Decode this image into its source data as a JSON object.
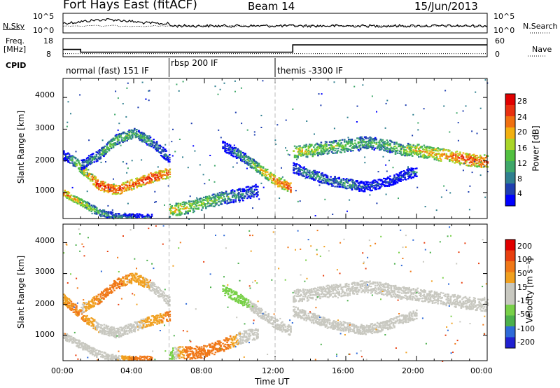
{
  "header": {
    "title": "Fort Hays East (fitACF)",
    "beam": "Beam 14",
    "date": "15/Jun/2013"
  },
  "params_panel": {
    "nsky_label": "N.Sky",
    "nsearch_label": "N.Search",
    "n_ticks": [
      "10^5",
      "10^0"
    ],
    "n_ticks_right": [
      "10^5",
      "10^0"
    ],
    "freq_label": "Freq.",
    "freq_unit": "[MHz]",
    "freq_ticks": [
      "18",
      "8"
    ],
    "nave_label": "Nave",
    "nave_ticks": [
      "60",
      "0"
    ],
    "cpid_label": "CPID",
    "cpid_segments": [
      {
        "text": "normal (fast) 151 IF",
        "start_h": 0.0
      },
      {
        "text": "rbsp 200 IF",
        "start_h": 6.0
      },
      {
        "text": "themis -3300 IF",
        "start_h": 12.0
      }
    ],
    "freq_steps": [
      {
        "t0": 0.0,
        "t1": 1.0,
        "value": 12.0
      },
      {
        "t0": 1.0,
        "t1": 13.0,
        "value": 10.5
      },
      {
        "t0": 13.0,
        "t1": 24.0,
        "value": 14.5
      }
    ],
    "nave_level": 10
  },
  "chart_data": [
    {
      "type": "heatmap",
      "name": "power",
      "ylabel": "Slant Range [km]",
      "xlim": [
        0,
        24
      ],
      "ylim": [
        180,
        4600
      ],
      "yticks": [
        "4000",
        "3000",
        "2000",
        "1000"
      ],
      "colorbar_label": "Power [dB]",
      "colorbar_ticks": [
        "28",
        "24",
        "20",
        "16",
        "12",
        "8",
        "4"
      ],
      "colorbar_colors": [
        "#0000ff",
        "#1f3fb0",
        "#2f7f8f",
        "#3fa86a",
        "#52c040",
        "#a9d528",
        "#f2b010",
        "#f07010",
        "#e83010",
        "#e00000"
      ],
      "bands": [
        {
          "pts": [
            [
              0,
              2200,
              4
            ],
            [
              0.5,
              2050,
              14
            ],
            [
              1,
              1800,
              20
            ],
            [
              2,
              1250,
              28
            ],
            [
              3,
              1100,
              26
            ],
            [
              4,
              1300,
              26
            ],
            [
              5,
              1500,
              28
            ],
            [
              6,
              1650,
              24
            ]
          ],
          "width": 160
        },
        {
          "pts": [
            [
              0,
              1000,
              24
            ],
            [
              1,
              700,
              20
            ],
            [
              2,
              400,
              14
            ],
            [
              3,
              250,
              10
            ],
            [
              4,
              230,
              8
            ],
            [
              5,
              220,
              6
            ]
          ],
          "width": 120
        },
        {
          "pts": [
            [
              1,
              1900,
              8
            ],
            [
              2,
              2200,
              14
            ],
            [
              3,
              2700,
              16
            ],
            [
              4,
              2900,
              14
            ],
            [
              5,
              2600,
              12
            ],
            [
              6,
              2100,
              8
            ]
          ],
          "width": 160
        },
        {
          "pts": [
            [
              6,
              450,
              20
            ],
            [
              7,
              550,
              18
            ],
            [
              8,
              700,
              16
            ],
            [
              9,
              850,
              14
            ],
            [
              10,
              950,
              10
            ],
            [
              11,
              1100,
              8
            ]
          ],
          "width": 200
        },
        {
          "pts": [
            [
              9,
              2500,
              6
            ],
            [
              10,
              2200,
              12
            ],
            [
              11,
              1800,
              18
            ],
            [
              12,
              1400,
              24
            ],
            [
              12.9,
              1150,
              26
            ]
          ],
          "width": 160
        },
        {
          "pts": [
            [
              13,
              2300,
              20
            ],
            [
              14,
              2350,
              18
            ],
            [
              15,
              2450,
              16
            ],
            [
              16,
              2500,
              16
            ],
            [
              17,
              2600,
              14
            ],
            [
              18,
              2550,
              14
            ],
            [
              19,
              2400,
              16
            ],
            [
              20,
              2350,
              20
            ],
            [
              21,
              2250,
              22
            ],
            [
              22,
              2150,
              24
            ],
            [
              23,
              2050,
              26
            ],
            [
              24,
              2000,
              24
            ]
          ],
          "width": 200
        },
        {
          "pts": [
            [
              13,
              1800,
              8
            ],
            [
              14,
              1600,
              12
            ],
            [
              15,
              1400,
              10
            ],
            [
              16,
              1300,
              12
            ],
            [
              17,
              1200,
              8
            ],
            [
              18,
              1300,
              6
            ],
            [
              19,
              1500,
              6
            ],
            [
              20,
              1700,
              10
            ]
          ],
          "width": 160
        }
      ]
    },
    {
      "type": "heatmap",
      "name": "velocity",
      "ylabel": "Slant Range [km]",
      "xlabel": "Time UT",
      "xlim": [
        0,
        24
      ],
      "ylim": [
        180,
        4600
      ],
      "yticks": [
        "4000",
        "3000",
        "2000",
        "1000"
      ],
      "xticks": [
        "00:00",
        "04:00",
        "08:00",
        "12:00",
        "16:00",
        "20:00",
        "00:00"
      ],
      "colorbar_label": "Velocity [m s⁻¹]",
      "colorbar_ticks": [
        "200",
        "100",
        "50",
        "15",
        "-15",
        "-50",
        "-100",
        "-200"
      ],
      "colorbar_colors": [
        "#2020d0",
        "#2e6ad8",
        "#4cb04c",
        "#78d048",
        "#c8c8c0",
        "#c8c8c0",
        "#f0a020",
        "#f07818",
        "#e84010",
        "#e00000"
      ],
      "bands": [
        {
          "pts": [
            [
              0,
              2200,
              -40
            ],
            [
              1,
              1700,
              -60
            ],
            [
              2,
              1250,
              -5
            ],
            [
              3,
              1100,
              -5
            ],
            [
              4,
              1300,
              -5
            ],
            [
              5,
              1500,
              -30
            ],
            [
              6,
              1650,
              -60
            ]
          ],
          "width": 160
        },
        {
          "pts": [
            [
              0,
              1000,
              -5
            ],
            [
              1,
              700,
              0
            ],
            [
              2,
              400,
              -5
            ],
            [
              3,
              250,
              -5
            ],
            [
              4,
              230,
              -60
            ],
            [
              5,
              220,
              -60
            ]
          ],
          "width": 120
        },
        {
          "pts": [
            [
              1,
              1900,
              -5
            ],
            [
              2,
              2200,
              -60
            ],
            [
              3,
              2700,
              -60
            ],
            [
              4,
              2900,
              -40
            ],
            [
              5,
              2600,
              -5
            ],
            [
              6,
              2100,
              -5
            ]
          ],
          "width": 160
        },
        {
          "pts": [
            [
              6,
              450,
              40
            ],
            [
              7,
              450,
              -70
            ],
            [
              8,
              500,
              -90
            ],
            [
              9,
              700,
              -80
            ],
            [
              10,
              950,
              -5
            ],
            [
              11,
              1100,
              -5
            ]
          ],
          "width": 200
        },
        {
          "pts": [
            [
              9,
              2500,
              40
            ],
            [
              10,
              2200,
              40
            ],
            [
              11,
              1800,
              -5
            ],
            [
              12,
              1400,
              -5
            ],
            [
              12.9,
              1150,
              -5
            ]
          ],
          "width": 160
        },
        {
          "pts": [
            [
              13,
              2300,
              -5
            ],
            [
              14,
              2350,
              -5
            ],
            [
              15,
              2450,
              -5
            ],
            [
              16,
              2500,
              -5
            ],
            [
              17,
              2600,
              -5
            ],
            [
              18,
              2550,
              -5
            ],
            [
              19,
              2400,
              -5
            ],
            [
              20,
              2350,
              -5
            ],
            [
              21,
              2250,
              -5
            ],
            [
              22,
              2150,
              -5
            ],
            [
              23,
              2050,
              -5
            ],
            [
              24,
              2000,
              -5
            ]
          ],
          "width": 200
        },
        {
          "pts": [
            [
              13,
              1800,
              -5
            ],
            [
              14,
              1600,
              -5
            ],
            [
              15,
              1400,
              -5
            ],
            [
              16,
              1300,
              -5
            ],
            [
              17,
              1200,
              -5
            ],
            [
              18,
              1300,
              -5
            ],
            [
              19,
              1500,
              -5
            ],
            [
              20,
              1700,
              -5
            ]
          ],
          "width": 160
        }
      ]
    }
  ]
}
